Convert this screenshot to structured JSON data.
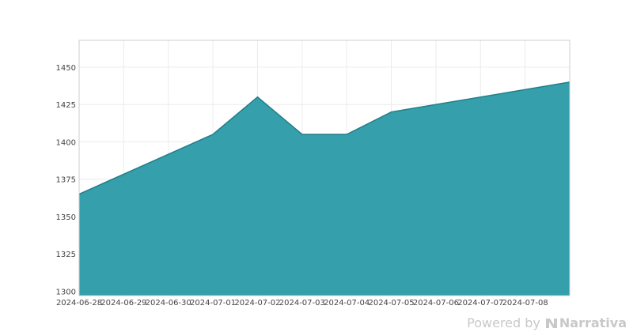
{
  "chart_data": {
    "type": "area",
    "x": [
      "2024-06-28",
      "2024-06-29",
      "2024-06-30",
      "2024-07-01",
      "2024-07-02",
      "2024-07-03",
      "2024-07-04",
      "2024-07-05",
      "2024-07-06",
      "2024-07-07",
      "2024-07-08"
    ],
    "series": [
      {
        "x": [
          "2024-06-28",
          "2024-07-01",
          "2024-07-02",
          "2024-07-03",
          "2024-07-04",
          "2024-07-05",
          "2024-07-09"
        ],
        "values": [
          1365,
          1405,
          1430,
          1405,
          1405,
          1420,
          1440
        ],
        "color": "#2a9aa6"
      }
    ],
    "title": "",
    "xlabel": "",
    "ylabel": "",
    "ylim": [
      1297,
      1468
    ],
    "xlim": [
      "2024-06-28",
      "2024-07-09"
    ],
    "yticks": [
      1300,
      1325,
      1350,
      1375,
      1400,
      1425,
      1450
    ],
    "grid": true,
    "legend": "none"
  },
  "watermark": {
    "powered_by": "Powered by",
    "brand": "Narrativa",
    "icon": "narrativa-logo-icon"
  }
}
